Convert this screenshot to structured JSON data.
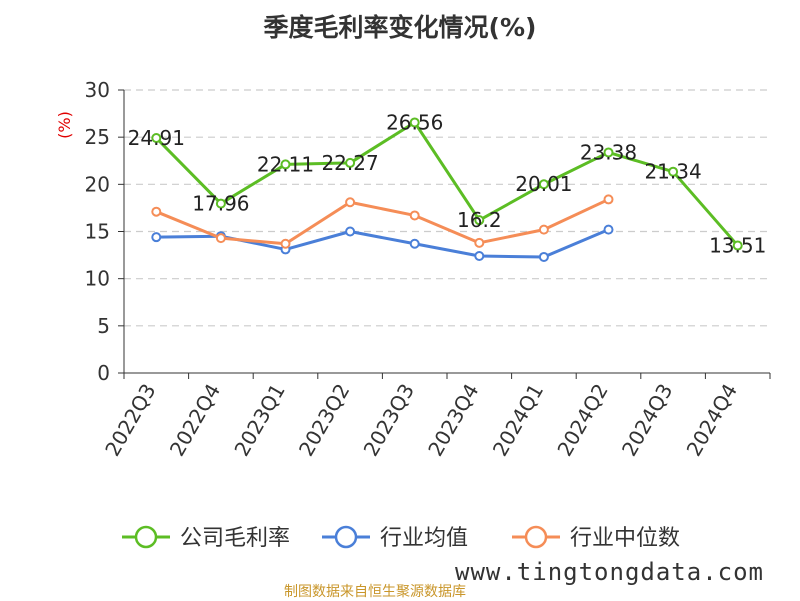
{
  "chart_data": {
    "type": "line",
    "title": "季度毛利率变化情况(%)",
    "ylabel": "(%)",
    "xlabel": "",
    "ylim": [
      0,
      30
    ],
    "yticks": [
      0,
      5,
      10,
      15,
      20,
      25,
      30
    ],
    "grid": true,
    "legend_position": "bottom",
    "categories": [
      "2022Q3",
      "2022Q4",
      "2023Q1",
      "2023Q2",
      "2023Q3",
      "2023Q4",
      "2024Q1",
      "2024Q2",
      "2024Q3",
      "2024Q4"
    ],
    "series": [
      {
        "name": "公司毛利率",
        "color": "#5cbd24",
        "values": [
          24.91,
          17.96,
          22.11,
          22.27,
          26.56,
          16.2,
          20.01,
          23.38,
          21.34,
          13.51
        ],
        "labels": [
          "24.91",
          "17.96",
          "22.11",
          "22.27",
          "26.56",
          "16.2",
          "20.01",
          "23.38",
          "21.34",
          "13.51"
        ]
      },
      {
        "name": "行业均值",
        "color": "#4a7fd8",
        "values": [
          14.4,
          14.5,
          13.1,
          15.0,
          13.7,
          12.4,
          12.3,
          15.2,
          null,
          null
        ]
      },
      {
        "name": "行业中位数",
        "color": "#f58d57",
        "values": [
          17.1,
          14.3,
          13.7,
          18.1,
          16.7,
          13.8,
          15.2,
          18.4,
          null,
          null
        ]
      }
    ]
  },
  "source_note": "制图数据来自恒生聚源数据库",
  "watermark": "www.tingtongdata.com"
}
